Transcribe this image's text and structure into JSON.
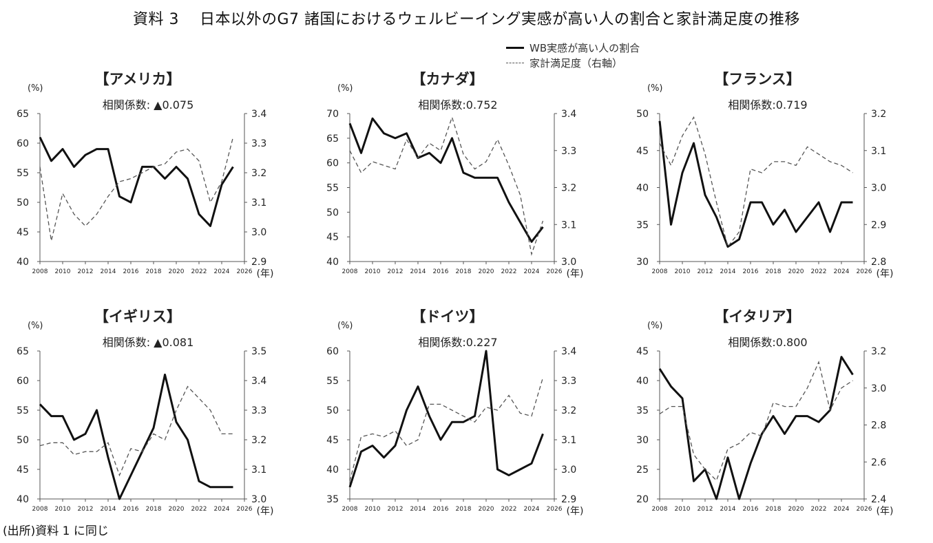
{
  "title": "資料 3　 日本以外のG7 諸国におけるウェルビーイング実感が高い人の割合と家計満足度の推移",
  "legend": {
    "wb": "WB実感が高い人の割合",
    "household": "家計満足度（右軸）"
  },
  "source": "(出所)資料 1 に同じ",
  "axis_units": {
    "left": "(%)",
    "x": "(年)"
  },
  "colors": {
    "wb_line": "#111111",
    "household_line": "#555555",
    "axis": "#555555"
  },
  "chart_data": [
    {
      "type": "line",
      "title": "【アメリカ】",
      "annotation": "相関係数: ▲0.075",
      "x": [
        2008,
        2009,
        2010,
        2011,
        2012,
        2013,
        2014,
        2015,
        2016,
        2017,
        2018,
        2019,
        2020,
        2021,
        2022,
        2023,
        2024,
        2025
      ],
      "xlim": [
        2008,
        2026
      ],
      "xticks": [
        2008,
        2010,
        2012,
        2014,
        2016,
        2018,
        2020,
        2022,
        2024,
        2026
      ],
      "ylim_left": [
        40,
        65
      ],
      "yticks_left": [
        40,
        45,
        50,
        55,
        60,
        65
      ],
      "ylim_right": [
        2.9,
        3.4
      ],
      "yticks_right": [
        2.9,
        3.0,
        3.1,
        3.2,
        3.3,
        3.4
      ],
      "series": [
        {
          "name": "WB実感が高い人の割合",
          "axis": "left",
          "values": [
            61,
            57,
            59,
            56,
            58,
            59,
            59,
            51,
            50,
            56,
            56,
            54,
            56,
            54,
            48,
            46,
            53,
            56
          ]
        },
        {
          "name": "家計満足度（右軸）",
          "axis": "right",
          "values": [
            3.22,
            2.97,
            3.13,
            3.06,
            3.02,
            3.06,
            3.12,
            3.17,
            3.18,
            3.2,
            3.22,
            3.23,
            3.27,
            3.28,
            3.24,
            3.1,
            3.17,
            3.32
          ]
        }
      ]
    },
    {
      "type": "line",
      "title": "【カナダ】",
      "annotation": "相関係数:0.752",
      "x": [
        2008,
        2009,
        2010,
        2011,
        2012,
        2013,
        2014,
        2015,
        2016,
        2017,
        2018,
        2019,
        2020,
        2021,
        2022,
        2023,
        2024,
        2025
      ],
      "xlim": [
        2008,
        2026
      ],
      "xticks": [
        2008,
        2010,
        2012,
        2014,
        2016,
        2018,
        2020,
        2022,
        2024,
        2026
      ],
      "ylim_left": [
        40,
        70
      ],
      "yticks_left": [
        40,
        45,
        50,
        55,
        60,
        65,
        70
      ],
      "ylim_right": [
        3.0,
        3.4
      ],
      "yticks_right": [
        3.0,
        3.1,
        3.2,
        3.3,
        3.4
      ],
      "series": [
        {
          "name": "WB実感が高い人の割合",
          "axis": "left",
          "values": [
            68,
            62,
            69,
            66,
            65,
            66,
            61,
            62,
            60,
            65,
            58,
            57,
            57,
            57,
            52,
            48,
            44,
            47
          ]
        },
        {
          "name": "家計満足度（右軸）",
          "axis": "right",
          "values": [
            3.3,
            3.24,
            3.27,
            3.26,
            3.25,
            3.33,
            3.28,
            3.32,
            3.3,
            3.39,
            3.29,
            3.25,
            3.27,
            3.33,
            3.26,
            3.18,
            3.02,
            3.11
          ]
        }
      ]
    },
    {
      "type": "line",
      "title": "【フランス】",
      "annotation": "相関係数:0.719",
      "x": [
        2008,
        2009,
        2010,
        2011,
        2012,
        2013,
        2014,
        2015,
        2016,
        2017,
        2018,
        2019,
        2020,
        2021,
        2022,
        2023,
        2024,
        2025
      ],
      "xlim": [
        2008,
        2026
      ],
      "xticks": [
        2008,
        2010,
        2012,
        2014,
        2016,
        2018,
        2020,
        2022,
        2024,
        2026
      ],
      "ylim_left": [
        30,
        50
      ],
      "yticks_left": [
        30,
        35,
        40,
        45,
        50
      ],
      "ylim_right": [
        2.8,
        3.2
      ],
      "yticks_right": [
        2.8,
        2.9,
        3.0,
        3.1,
        3.2
      ],
      "series": [
        {
          "name": "WB実感が高い人の割合",
          "axis": "left",
          "values": [
            49,
            35,
            42,
            46,
            39,
            36,
            32,
            33,
            38,
            38,
            35,
            37,
            34,
            36,
            38,
            34,
            38,
            38
          ]
        },
        {
          "name": "家計満足度（右軸）",
          "axis": "right",
          "values": [
            3.12,
            3.06,
            3.14,
            3.19,
            3.09,
            2.96,
            2.84,
            2.88,
            3.05,
            3.04,
            3.07,
            3.07,
            3.06,
            3.11,
            3.09,
            3.07,
            3.06,
            3.04
          ]
        }
      ]
    },
    {
      "type": "line",
      "title": "【イギリス】",
      "annotation": "相関係数: ▲0.081",
      "x": [
        2008,
        2009,
        2010,
        2011,
        2012,
        2013,
        2014,
        2015,
        2016,
        2017,
        2018,
        2019,
        2020,
        2021,
        2022,
        2023,
        2024,
        2025
      ],
      "xlim": [
        2008,
        2026
      ],
      "xticks": [
        2008,
        2010,
        2012,
        2014,
        2016,
        2018,
        2020,
        2022,
        2024,
        2026
      ],
      "ylim_left": [
        40,
        65
      ],
      "yticks_left": [
        40,
        45,
        50,
        55,
        60,
        65
      ],
      "ylim_right": [
        3.0,
        3.5
      ],
      "yticks_right": [
        3.0,
        3.1,
        3.2,
        3.3,
        3.4,
        3.5
      ],
      "series": [
        {
          "name": "WB実感が高い人の割合",
          "axis": "left",
          "values": [
            56,
            54,
            54,
            50,
            51,
            55,
            47,
            40,
            44,
            48,
            52,
            61,
            53,
            50,
            43,
            42,
            42,
            42
          ]
        },
        {
          "name": "家計満足度（右軸）",
          "axis": "right",
          "values": [
            3.18,
            3.19,
            3.19,
            3.15,
            3.16,
            3.16,
            3.19,
            3.08,
            3.17,
            3.16,
            3.22,
            3.2,
            3.3,
            3.38,
            3.34,
            3.3,
            3.22,
            3.22
          ]
        }
      ]
    },
    {
      "type": "line",
      "title": "【ドイツ】",
      "annotation": "相関係数:0.227",
      "x": [
        2008,
        2009,
        2010,
        2011,
        2012,
        2013,
        2014,
        2015,
        2016,
        2017,
        2018,
        2019,
        2020,
        2021,
        2022,
        2023,
        2024,
        2025
      ],
      "xlim": [
        2008,
        2026
      ],
      "xticks": [
        2008,
        2010,
        2012,
        2014,
        2016,
        2018,
        2020,
        2022,
        2024,
        2026
      ],
      "ylim_left": [
        35,
        60
      ],
      "yticks_left": [
        35,
        40,
        45,
        50,
        55,
        60
      ],
      "ylim_right": [
        2.9,
        3.4
      ],
      "yticks_right": [
        2.9,
        3.0,
        3.1,
        3.2,
        3.3,
        3.4
      ],
      "series": [
        {
          "name": "WB実感が高い人の割合",
          "axis": "left",
          "values": [
            37,
            43,
            44,
            42,
            44,
            50,
            54,
            49,
            45,
            48,
            48,
            49,
            60,
            40,
            39,
            40,
            41,
            46
          ]
        },
        {
          "name": "家計満足度（右軸）",
          "axis": "right",
          "values": [
            2.96,
            3.11,
            3.12,
            3.11,
            3.13,
            3.08,
            3.1,
            3.22,
            3.22,
            3.2,
            3.18,
            3.16,
            3.21,
            3.2,
            3.25,
            3.19,
            3.18,
            3.31
          ]
        }
      ]
    },
    {
      "type": "line",
      "title": "【イタリア】",
      "annotation": "相関係数:0.800",
      "x": [
        2008,
        2009,
        2010,
        2011,
        2012,
        2013,
        2014,
        2015,
        2016,
        2017,
        2018,
        2019,
        2020,
        2021,
        2022,
        2023,
        2024,
        2025
      ],
      "xlim": [
        2008,
        2026
      ],
      "xticks": [
        2008,
        2010,
        2012,
        2014,
        2016,
        2018,
        2020,
        2022,
        2024,
        2026
      ],
      "ylim_left": [
        20,
        45
      ],
      "yticks_left": [
        20,
        25,
        30,
        35,
        40,
        45
      ],
      "ylim_right": [
        2.4,
        3.2
      ],
      "yticks_right": [
        2.4,
        2.6,
        2.8,
        3.0,
        3.2
      ],
      "series": [
        {
          "name": "WB実感が高い人の割合",
          "axis": "left",
          "values": [
            42,
            39,
            37,
            23,
            25,
            20,
            27,
            20,
            26,
            31,
            34,
            31,
            34,
            34,
            33,
            35,
            44,
            41
          ]
        },
        {
          "name": "家計満足度（右軸）",
          "axis": "right",
          "values": [
            2.86,
            2.9,
            2.9,
            2.64,
            2.56,
            2.5,
            2.67,
            2.7,
            2.76,
            2.74,
            2.92,
            2.9,
            2.9,
            3.0,
            3.14,
            2.88,
            3.0,
            3.04
          ]
        }
      ]
    }
  ]
}
